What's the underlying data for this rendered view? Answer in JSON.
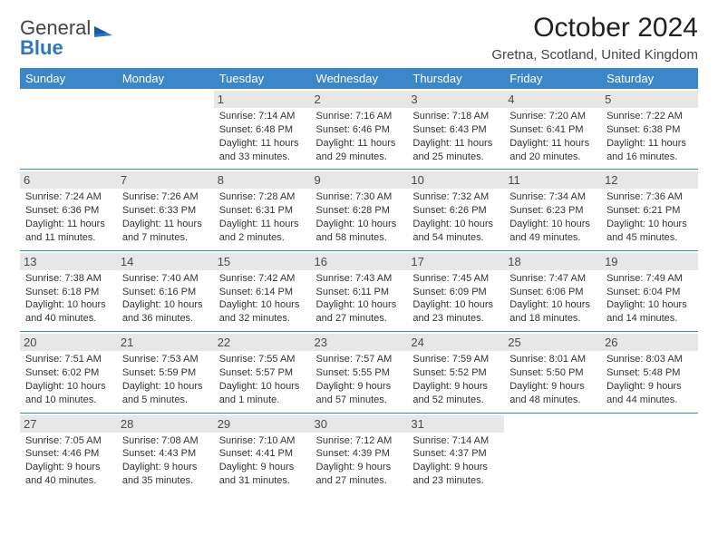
{
  "brand": {
    "part1": "General",
    "part2": "Blue"
  },
  "title": "October 2024",
  "location": "Gretna, Scotland, United Kingdom",
  "colors": {
    "header_bg": "#3b87c8",
    "header_text": "#ffffff",
    "daynum_bg": "#e7e7e7",
    "row_border": "#3b87c8",
    "brand_blue": "#2f76c2"
  },
  "weekdays": [
    "Sunday",
    "Monday",
    "Tuesday",
    "Wednesday",
    "Thursday",
    "Friday",
    "Saturday"
  ],
  "weeks": [
    [
      null,
      null,
      {
        "n": "1",
        "sr": "7:14 AM",
        "ss": "6:48 PM",
        "dl": "11 hours and 33 minutes."
      },
      {
        "n": "2",
        "sr": "7:16 AM",
        "ss": "6:46 PM",
        "dl": "11 hours and 29 minutes."
      },
      {
        "n": "3",
        "sr": "7:18 AM",
        "ss": "6:43 PM",
        "dl": "11 hours and 25 minutes."
      },
      {
        "n": "4",
        "sr": "7:20 AM",
        "ss": "6:41 PM",
        "dl": "11 hours and 20 minutes."
      },
      {
        "n": "5",
        "sr": "7:22 AM",
        "ss": "6:38 PM",
        "dl": "11 hours and 16 minutes."
      }
    ],
    [
      {
        "n": "6",
        "sr": "7:24 AM",
        "ss": "6:36 PM",
        "dl": "11 hours and 11 minutes."
      },
      {
        "n": "7",
        "sr": "7:26 AM",
        "ss": "6:33 PM",
        "dl": "11 hours and 7 minutes."
      },
      {
        "n": "8",
        "sr": "7:28 AM",
        "ss": "6:31 PM",
        "dl": "11 hours and 2 minutes."
      },
      {
        "n": "9",
        "sr": "7:30 AM",
        "ss": "6:28 PM",
        "dl": "10 hours and 58 minutes."
      },
      {
        "n": "10",
        "sr": "7:32 AM",
        "ss": "6:26 PM",
        "dl": "10 hours and 54 minutes."
      },
      {
        "n": "11",
        "sr": "7:34 AM",
        "ss": "6:23 PM",
        "dl": "10 hours and 49 minutes."
      },
      {
        "n": "12",
        "sr": "7:36 AM",
        "ss": "6:21 PM",
        "dl": "10 hours and 45 minutes."
      }
    ],
    [
      {
        "n": "13",
        "sr": "7:38 AM",
        "ss": "6:18 PM",
        "dl": "10 hours and 40 minutes."
      },
      {
        "n": "14",
        "sr": "7:40 AM",
        "ss": "6:16 PM",
        "dl": "10 hours and 36 minutes."
      },
      {
        "n": "15",
        "sr": "7:42 AM",
        "ss": "6:14 PM",
        "dl": "10 hours and 32 minutes."
      },
      {
        "n": "16",
        "sr": "7:43 AM",
        "ss": "6:11 PM",
        "dl": "10 hours and 27 minutes."
      },
      {
        "n": "17",
        "sr": "7:45 AM",
        "ss": "6:09 PM",
        "dl": "10 hours and 23 minutes."
      },
      {
        "n": "18",
        "sr": "7:47 AM",
        "ss": "6:06 PM",
        "dl": "10 hours and 18 minutes."
      },
      {
        "n": "19",
        "sr": "7:49 AM",
        "ss": "6:04 PM",
        "dl": "10 hours and 14 minutes."
      }
    ],
    [
      {
        "n": "20",
        "sr": "7:51 AM",
        "ss": "6:02 PM",
        "dl": "10 hours and 10 minutes."
      },
      {
        "n": "21",
        "sr": "7:53 AM",
        "ss": "5:59 PM",
        "dl": "10 hours and 5 minutes."
      },
      {
        "n": "22",
        "sr": "7:55 AM",
        "ss": "5:57 PM",
        "dl": "10 hours and 1 minute."
      },
      {
        "n": "23",
        "sr": "7:57 AM",
        "ss": "5:55 PM",
        "dl": "9 hours and 57 minutes."
      },
      {
        "n": "24",
        "sr": "7:59 AM",
        "ss": "5:52 PM",
        "dl": "9 hours and 52 minutes."
      },
      {
        "n": "25",
        "sr": "8:01 AM",
        "ss": "5:50 PM",
        "dl": "9 hours and 48 minutes."
      },
      {
        "n": "26",
        "sr": "8:03 AM",
        "ss": "5:48 PM",
        "dl": "9 hours and 44 minutes."
      }
    ],
    [
      {
        "n": "27",
        "sr": "7:05 AM",
        "ss": "4:46 PM",
        "dl": "9 hours and 40 minutes."
      },
      {
        "n": "28",
        "sr": "7:08 AM",
        "ss": "4:43 PM",
        "dl": "9 hours and 35 minutes."
      },
      {
        "n": "29",
        "sr": "7:10 AM",
        "ss": "4:41 PM",
        "dl": "9 hours and 31 minutes."
      },
      {
        "n": "30",
        "sr": "7:12 AM",
        "ss": "4:39 PM",
        "dl": "9 hours and 27 minutes."
      },
      {
        "n": "31",
        "sr": "7:14 AM",
        "ss": "4:37 PM",
        "dl": "9 hours and 23 minutes."
      },
      null,
      null
    ]
  ],
  "labels": {
    "sunrise": "Sunrise:",
    "sunset": "Sunset:",
    "daylight": "Daylight:"
  }
}
